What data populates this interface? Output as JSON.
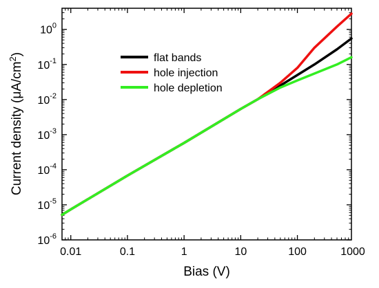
{
  "chart_data": {
    "type": "line",
    "xlabel": "Bias (V)",
    "ylabel": {
      "prefix": "Current density (",
      "unit": "μA/cm",
      "superscript": "2",
      "suffix": ")"
    },
    "xscale": "log",
    "yscale": "log",
    "xlim": [
      0.007,
      900
    ],
    "ylim": [
      1e-06,
      4
    ],
    "x_ticks": [
      {
        "value": 0.01,
        "label": "0.01"
      },
      {
        "value": 0.1,
        "label": "0.1"
      },
      {
        "value": 1,
        "label": "1"
      },
      {
        "value": 10,
        "label": "10"
      },
      {
        "value": 100,
        "label": "100"
      },
      {
        "value": 1000,
        "label": "1000"
      }
    ],
    "y_ticks": [
      {
        "value": 1e-06,
        "base": "10",
        "exp": "-6"
      },
      {
        "value": 1e-05,
        "base": "10",
        "exp": "-5"
      },
      {
        "value": 0.0001,
        "base": "10",
        "exp": "-4"
      },
      {
        "value": 0.001,
        "base": "10",
        "exp": "-3"
      },
      {
        "value": 0.01,
        "base": "10",
        "exp": "-2"
      },
      {
        "value": 0.1,
        "base": "10",
        "exp": "-1"
      },
      {
        "value": 1,
        "base": "10",
        "exp": "0"
      }
    ],
    "grid": false,
    "legend_position": "top-center",
    "series": [
      {
        "name": "flat bands",
        "color": "#000000",
        "x": [
          0.007,
          0.01,
          0.1,
          1,
          10,
          20,
          50,
          100,
          200,
          500,
          900
        ],
        "y": [
          5.2e-06,
          7.4e-06,
          6.8e-05,
          0.00058,
          0.0054,
          0.0102,
          0.025,
          0.05,
          0.1,
          0.27,
          0.55
        ]
      },
      {
        "name": "hole injection",
        "color": "#ee1111",
        "x": [
          0.007,
          0.01,
          0.1,
          1,
          10,
          20,
          50,
          100,
          200,
          500,
          900
        ],
        "y": [
          5.2e-06,
          7.4e-06,
          6.8e-05,
          0.00058,
          0.0054,
          0.0102,
          0.03,
          0.08,
          0.3,
          1.2,
          2.8
        ]
      },
      {
        "name": "hole depletion",
        "color": "#33ee22",
        "x": [
          0.007,
          0.01,
          0.1,
          1,
          10,
          20,
          50,
          100,
          200,
          500,
          900
        ],
        "y": [
          5.2e-06,
          7.4e-06,
          6.8e-05,
          0.00058,
          0.0054,
          0.0102,
          0.022,
          0.035,
          0.055,
          0.1,
          0.16
        ]
      }
    ]
  }
}
